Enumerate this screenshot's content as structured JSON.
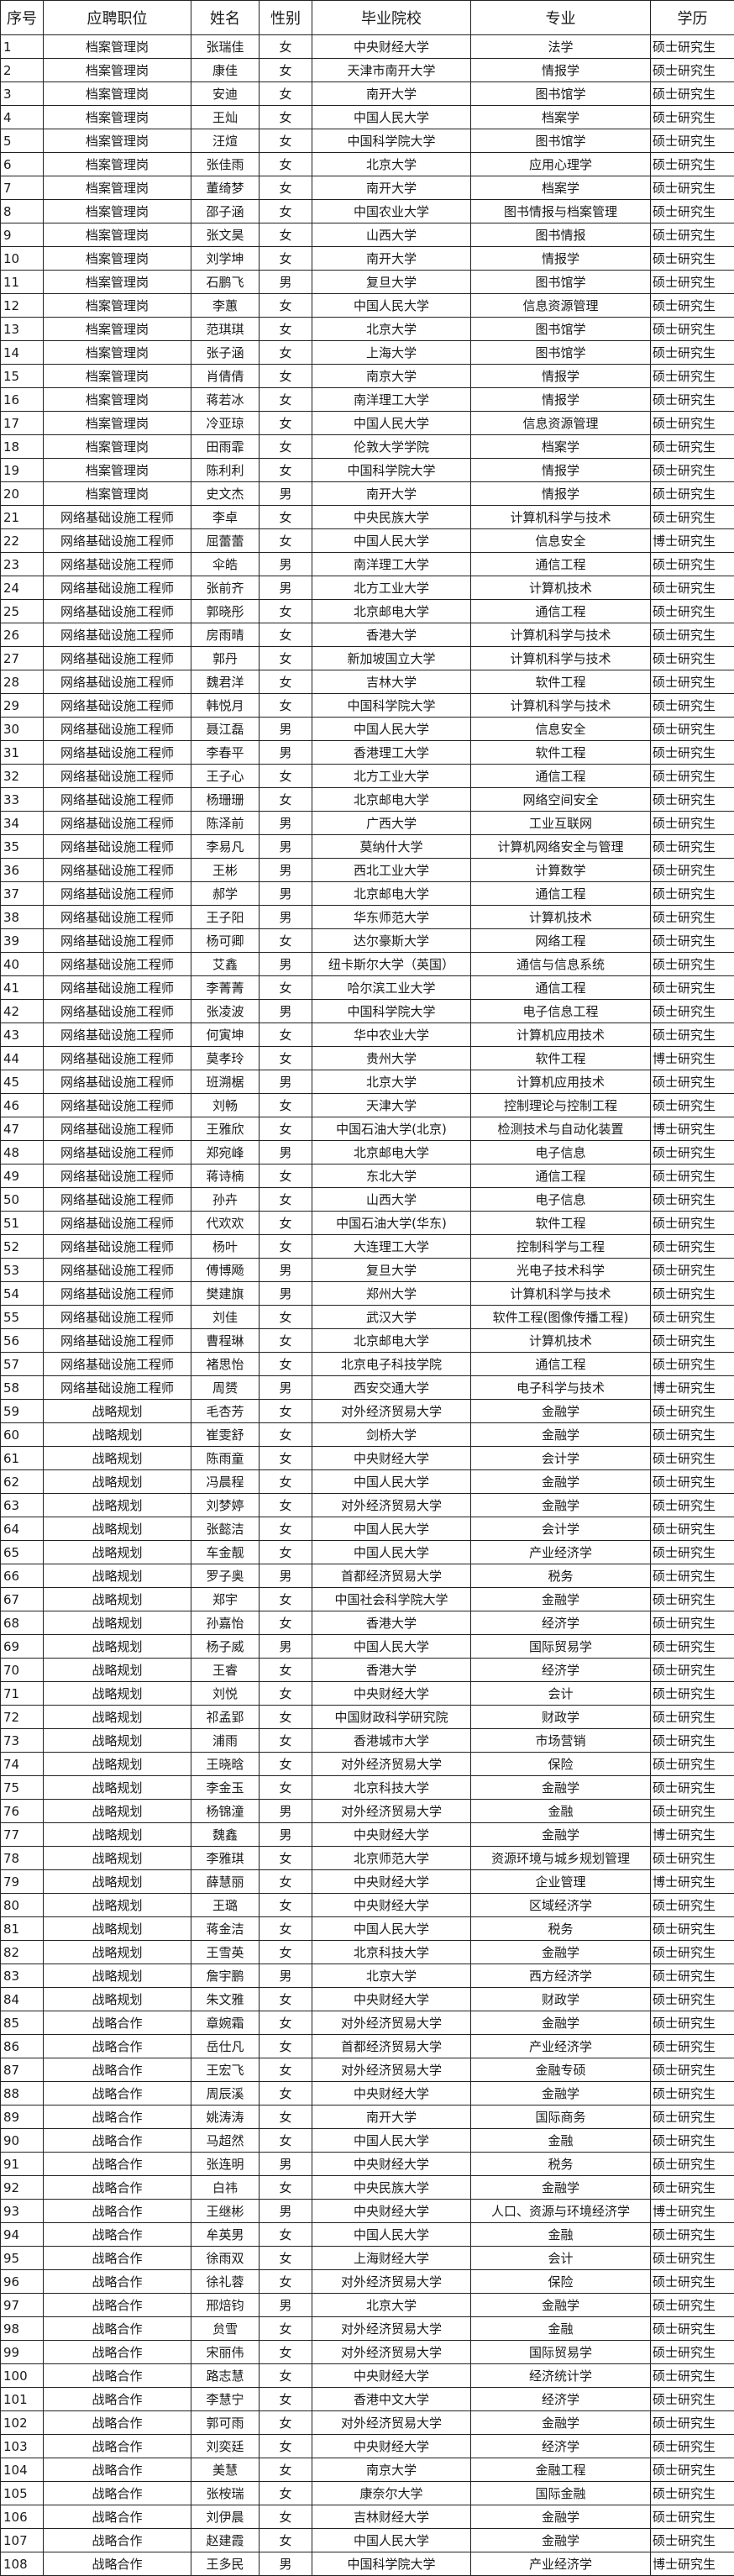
{
  "table": {
    "headers": [
      "序号",
      "应聘职位",
      "姓名",
      "性别",
      "毕业院校",
      "专业",
      "学历"
    ],
    "rows": [
      [
        "1",
        "档案管理岗",
        "张瑞佳",
        "女",
        "中央财经大学",
        "法学",
        "硕士研究生"
      ],
      [
        "2",
        "档案管理岗",
        "康佳",
        "女",
        "天津市南开大学",
        "情报学",
        "硕士研究生"
      ],
      [
        "3",
        "档案管理岗",
        "安迪",
        "女",
        "南开大学",
        "图书馆学",
        "硕士研究生"
      ],
      [
        "4",
        "档案管理岗",
        "王灿",
        "女",
        "中国人民大学",
        "档案学",
        "硕士研究生"
      ],
      [
        "5",
        "档案管理岗",
        "汪煊",
        "女",
        "中国科学院大学",
        "图书馆学",
        "硕士研究生"
      ],
      [
        "6",
        "档案管理岗",
        "张佳雨",
        "女",
        "北京大学",
        "应用心理学",
        "硕士研究生"
      ],
      [
        "7",
        "档案管理岗",
        "董绮梦",
        "女",
        "南开大学",
        "档案学",
        "硕士研究生"
      ],
      [
        "8",
        "档案管理岗",
        "邵子涵",
        "女",
        "中国农业大学",
        "图书情报与档案管理",
        "硕士研究生"
      ],
      [
        "9",
        "档案管理岗",
        "张文昊",
        "女",
        "山西大学",
        "图书情报",
        "硕士研究生"
      ],
      [
        "10",
        "档案管理岗",
        "刘学坤",
        "女",
        "南开大学",
        "情报学",
        "硕士研究生"
      ],
      [
        "11",
        "档案管理岗",
        "石鹏飞",
        "男",
        "复旦大学",
        "图书馆学",
        "硕士研究生"
      ],
      [
        "12",
        "档案管理岗",
        "李蕙",
        "女",
        "中国人民大学",
        "信息资源管理",
        "硕士研究生"
      ],
      [
        "13",
        "档案管理岗",
        "范琪琪",
        "女",
        "北京大学",
        "图书馆学",
        "硕士研究生"
      ],
      [
        "14",
        "档案管理岗",
        "张子涵",
        "女",
        "上海大学",
        "图书馆学",
        "硕士研究生"
      ],
      [
        "15",
        "档案管理岗",
        "肖倩倩",
        "女",
        "南京大学",
        "情报学",
        "硕士研究生"
      ],
      [
        "16",
        "档案管理岗",
        "蒋若冰",
        "女",
        "南洋理工大学",
        "情报学",
        "硕士研究生"
      ],
      [
        "17",
        "档案管理岗",
        "冷亚琼",
        "女",
        "中国人民大学",
        "信息资源管理",
        "硕士研究生"
      ],
      [
        "18",
        "档案管理岗",
        "田雨霏",
        "女",
        "伦敦大学学院",
        "档案学",
        "硕士研究生"
      ],
      [
        "19",
        "档案管理岗",
        "陈利利",
        "女",
        "中国科学院大学",
        "情报学",
        "硕士研究生"
      ],
      [
        "20",
        "档案管理岗",
        "史文杰",
        "男",
        "南开大学",
        "情报学",
        "硕士研究生"
      ],
      [
        "21",
        "网络基础设施工程师",
        "李卓",
        "女",
        "中央民族大学",
        "计算机科学与技术",
        "硕士研究生"
      ],
      [
        "22",
        "网络基础设施工程师",
        "屈蕾蕾",
        "女",
        "中国人民大学",
        "信息安全",
        "博士研究生"
      ],
      [
        "23",
        "网络基础设施工程师",
        "伞皓",
        "男",
        "南洋理工大学",
        "通信工程",
        "硕士研究生"
      ],
      [
        "24",
        "网络基础设施工程师",
        "张前齐",
        "男",
        "北方工业大学",
        "计算机技术",
        "硕士研究生"
      ],
      [
        "25",
        "网络基础设施工程师",
        "郭晓彤",
        "女",
        "北京邮电大学",
        "通信工程",
        "硕士研究生"
      ],
      [
        "26",
        "网络基础设施工程师",
        "房雨晴",
        "女",
        "香港大学",
        "计算机科学与技术",
        "硕士研究生"
      ],
      [
        "27",
        "网络基础设施工程师",
        "郭丹",
        "女",
        "新加坡国立大学",
        "计算机科学与技术",
        "硕士研究生"
      ],
      [
        "28",
        "网络基础设施工程师",
        "魏君洋",
        "女",
        "吉林大学",
        "软件工程",
        "硕士研究生"
      ],
      [
        "29",
        "网络基础设施工程师",
        "韩悦月",
        "女",
        "中国科学院大学",
        "计算机科学与技术",
        "硕士研究生"
      ],
      [
        "30",
        "网络基础设施工程师",
        "聂江磊",
        "男",
        "中国人民大学",
        "信息安全",
        "硕士研究生"
      ],
      [
        "31",
        "网络基础设施工程师",
        "李春平",
        "男",
        "香港理工大学",
        "软件工程",
        "硕士研究生"
      ],
      [
        "32",
        "网络基础设施工程师",
        "王子心",
        "女",
        "北方工业大学",
        "通信工程",
        "硕士研究生"
      ],
      [
        "33",
        "网络基础设施工程师",
        "杨珊珊",
        "女",
        "北京邮电大学",
        "网络空间安全",
        "硕士研究生"
      ],
      [
        "34",
        "网络基础设施工程师",
        "陈泽前",
        "男",
        "广西大学",
        "工业互联网",
        "硕士研究生"
      ],
      [
        "35",
        "网络基础设施工程师",
        "李易凡",
        "男",
        "莫纳什大学",
        "计算机网络安全与管理",
        "硕士研究生"
      ],
      [
        "36",
        "网络基础设施工程师",
        "王彬",
        "男",
        "西北工业大学",
        "计算数学",
        "硕士研究生"
      ],
      [
        "37",
        "网络基础设施工程师",
        "郝学",
        "男",
        "北京邮电大学",
        "通信工程",
        "硕士研究生"
      ],
      [
        "38",
        "网络基础设施工程师",
        "王子阳",
        "男",
        "华东师范大学",
        "计算机技术",
        "硕士研究生"
      ],
      [
        "39",
        "网络基础设施工程师",
        "杨可卿",
        "女",
        "达尔豪斯大学",
        "网络工程",
        "硕士研究生"
      ],
      [
        "40",
        "网络基础设施工程师",
        "艾鑫",
        "男",
        "纽卡斯尔大学（英国）",
        "通信与信息系统",
        "硕士研究生"
      ],
      [
        "41",
        "网络基础设施工程师",
        "李菁菁",
        "女",
        "哈尔滨工业大学",
        "通信工程",
        "硕士研究生"
      ],
      [
        "42",
        "网络基础设施工程师",
        "张凌波",
        "男",
        "中国科学院大学",
        "电子信息工程",
        "硕士研究生"
      ],
      [
        "43",
        "网络基础设施工程师",
        "何寅坤",
        "女",
        "华中农业大学",
        "计算机应用技术",
        "硕士研究生"
      ],
      [
        "44",
        "网络基础设施工程师",
        "莫孝玲",
        "女",
        "贵州大学",
        "软件工程",
        "博士研究生"
      ],
      [
        "45",
        "网络基础设施工程师",
        "班溯椐",
        "男",
        "北京大学",
        "计算机应用技术",
        "硕士研究生"
      ],
      [
        "46",
        "网络基础设施工程师",
        "刘畅",
        "女",
        "天津大学",
        "控制理论与控制工程",
        "硕士研究生"
      ],
      [
        "47",
        "网络基础设施工程师",
        "王雅欣",
        "女",
        "中国石油大学(北京)",
        "检测技术与自动化装置",
        "博士研究生"
      ],
      [
        "48",
        "网络基础设施工程师",
        "郑宛峰",
        "男",
        "北京邮电大学",
        "电子信息",
        "硕士研究生"
      ],
      [
        "49",
        "网络基础设施工程师",
        "蒋诗楠",
        "女",
        "东北大学",
        "通信工程",
        "硕士研究生"
      ],
      [
        "50",
        "网络基础设施工程师",
        "孙卉",
        "女",
        "山西大学",
        "电子信息",
        "硕士研究生"
      ],
      [
        "51",
        "网络基础设施工程师",
        "代欢欢",
        "女",
        "中国石油大学(华东)",
        "软件工程",
        "硕士研究生"
      ],
      [
        "52",
        "网络基础设施工程师",
        "杨叶",
        "女",
        "大连理工大学",
        "控制科学与工程",
        "硕士研究生"
      ],
      [
        "53",
        "网络基础设施工程师",
        "傅博飏",
        "男",
        "复旦大学",
        "光电子技术科学",
        "硕士研究生"
      ],
      [
        "54",
        "网络基础设施工程师",
        "樊建旗",
        "男",
        "郑州大学",
        "计算机科学与技术",
        "硕士研究生"
      ],
      [
        "55",
        "网络基础设施工程师",
        "刘佳",
        "女",
        "武汉大学",
        "软件工程(图像传播工程)",
        "硕士研究生"
      ],
      [
        "56",
        "网络基础设施工程师",
        "曹程琳",
        "女",
        "北京邮电大学",
        "计算机技术",
        "硕士研究生"
      ],
      [
        "57",
        "网络基础设施工程师",
        "褚思怡",
        "女",
        "北京电子科技学院",
        "通信工程",
        "硕士研究生"
      ],
      [
        "58",
        "网络基础设施工程师",
        "周赟",
        "男",
        "西安交通大学",
        "电子科学与技术",
        "博士研究生"
      ],
      [
        "59",
        "战略规划",
        "毛杏芳",
        "女",
        "对外经济贸易大学",
        "金融学",
        "硕士研究生"
      ],
      [
        "60",
        "战略规划",
        "崔雯舒",
        "女",
        "剑桥大学",
        "金融学",
        "硕士研究生"
      ],
      [
        "61",
        "战略规划",
        "陈雨童",
        "女",
        "中央财经大学",
        "会计学",
        "硕士研究生"
      ],
      [
        "62",
        "战略规划",
        "冯晨程",
        "女",
        "中国人民大学",
        "金融学",
        "硕士研究生"
      ],
      [
        "63",
        "战略规划",
        "刘梦婷",
        "女",
        "对外经济贸易大学",
        "金融学",
        "硕士研究生"
      ],
      [
        "64",
        "战略规划",
        "张懿洁",
        "女",
        "中国人民大学",
        "会计学",
        "硕士研究生"
      ],
      [
        "65",
        "战略规划",
        "车金靓",
        "女",
        "中国人民大学",
        "产业经济学",
        "硕士研究生"
      ],
      [
        "66",
        "战略规划",
        "罗子奥",
        "男",
        "首都经济贸易大学",
        "税务",
        "硕士研究生"
      ],
      [
        "67",
        "战略规划",
        "郑宇",
        "女",
        "中国社会科学院大学",
        "金融学",
        "硕士研究生"
      ],
      [
        "68",
        "战略规划",
        "孙嘉怡",
        "女",
        "香港大学",
        "经济学",
        "硕士研究生"
      ],
      [
        "69",
        "战略规划",
        "杨子威",
        "男",
        "中国人民大学",
        "国际贸易学",
        "硕士研究生"
      ],
      [
        "70",
        "战略规划",
        "王睿",
        "女",
        "香港大学",
        "经济学",
        "硕士研究生"
      ],
      [
        "71",
        "战略规划",
        "刘悦",
        "女",
        "中央财经大学",
        "会计",
        "硕士研究生"
      ],
      [
        "72",
        "战略规划",
        "祁孟郢",
        "女",
        "中国财政科学研究院",
        "财政学",
        "硕士研究生"
      ],
      [
        "73",
        "战略规划",
        "浦雨",
        "女",
        "香港城市大学",
        "市场营销",
        "硕士研究生"
      ],
      [
        "74",
        "战略规划",
        "王晓晗",
        "女",
        "对外经济贸易大学",
        "保险",
        "硕士研究生"
      ],
      [
        "75",
        "战略规划",
        "李金玉",
        "女",
        "北京科技大学",
        "金融学",
        "硕士研究生"
      ],
      [
        "76",
        "战略规划",
        "杨锦潼",
        "男",
        "对外经济贸易大学",
        "金融",
        "硕士研究生"
      ],
      [
        "77",
        "战略规划",
        "魏鑫",
        "男",
        "中央财经大学",
        "金融学",
        "博士研究生"
      ],
      [
        "78",
        "战略规划",
        "李雅琪",
        "女",
        "北京师范大学",
        "资源环境与城乡规划管理",
        "硕士研究生"
      ],
      [
        "79",
        "战略规划",
        "薛慧丽",
        "女",
        "中央财经大学",
        "企业管理",
        "博士研究生"
      ],
      [
        "80",
        "战略规划",
        "王璐",
        "女",
        "中央财经大学",
        "区域经济学",
        "硕士研究生"
      ],
      [
        "81",
        "战略规划",
        "蒋金洁",
        "女",
        "中国人民大学",
        "税务",
        "硕士研究生"
      ],
      [
        "82",
        "战略规划",
        "王雪英",
        "女",
        "北京科技大学",
        "金融学",
        "硕士研究生"
      ],
      [
        "83",
        "战略规划",
        "詹宇鹏",
        "男",
        "北京大学",
        "西方经济学",
        "硕士研究生"
      ],
      [
        "84",
        "战略规划",
        "朱文雅",
        "女",
        "中央财经大学",
        "财政学",
        "硕士研究生"
      ],
      [
        "85",
        "战略合作",
        "章婉霜",
        "女",
        "对外经济贸易大学",
        "金融学",
        "硕士研究生"
      ],
      [
        "86",
        "战略合作",
        "岳仕凡",
        "女",
        "首都经济贸易大学",
        "产业经济学",
        "硕士研究生"
      ],
      [
        "87",
        "战略合作",
        "王宏飞",
        "女",
        "对外经济贸易大学",
        "金融专硕",
        "硕士研究生"
      ],
      [
        "88",
        "战略合作",
        "周辰溪",
        "女",
        "中央财经大学",
        "金融学",
        "硕士研究生"
      ],
      [
        "89",
        "战略合作",
        "姚涛涛",
        "女",
        "南开大学",
        "国际商务",
        "硕士研究生"
      ],
      [
        "90",
        "战略合作",
        "马超然",
        "女",
        "中国人民大学",
        "金融",
        "硕士研究生"
      ],
      [
        "91",
        "战略合作",
        "张连明",
        "男",
        "中央财经大学",
        "税务",
        "硕士研究生"
      ],
      [
        "92",
        "战略合作",
        "白祎",
        "女",
        "中央民族大学",
        "金融学",
        "硕士研究生"
      ],
      [
        "93",
        "战略合作",
        "王继彬",
        "男",
        "中央财经大学",
        "人口、资源与环境经济学",
        "博士研究生"
      ],
      [
        "94",
        "战略合作",
        "牟英男",
        "女",
        "中国人民大学",
        "金融",
        "硕士研究生"
      ],
      [
        "95",
        "战略合作",
        "徐雨双",
        "女",
        "上海财经大学",
        "会计",
        "硕士研究生"
      ],
      [
        "96",
        "战略合作",
        "徐礼蓉",
        "女",
        "对外经济贸易大学",
        "保险",
        "硕士研究生"
      ],
      [
        "97",
        "战略合作",
        "邢焙钧",
        "男",
        "北京大学",
        "金融学",
        "硕士研究生"
      ],
      [
        "98",
        "战略合作",
        "贠雪",
        "女",
        "对外经济贸易大学",
        "金融",
        "硕士研究生"
      ],
      [
        "99",
        "战略合作",
        "宋丽伟",
        "女",
        "对外经济贸易大学",
        "国际贸易学",
        "硕士研究生"
      ],
      [
        "100",
        "战略合作",
        "路志慧",
        "女",
        "中央财经大学",
        "经济统计学",
        "硕士研究生"
      ],
      [
        "101",
        "战略合作",
        "李慧宁",
        "女",
        "香港中文大学",
        "经济学",
        "硕士研究生"
      ],
      [
        "102",
        "战略合作",
        "郭可雨",
        "女",
        "对外经济贸易大学",
        "金融学",
        "硕士研究生"
      ],
      [
        "103",
        "战略合作",
        "刘奕廷",
        "女",
        "中央财经大学",
        "经济学",
        "硕士研究生"
      ],
      [
        "104",
        "战略合作",
        "美慧",
        "女",
        "南京大学",
        "金融工程",
        "硕士研究生"
      ],
      [
        "105",
        "战略合作",
        "张桉瑞",
        "女",
        "康奈尔大学",
        "国际金融",
        "硕士研究生"
      ],
      [
        "106",
        "战略合作",
        "刘伊晨",
        "女",
        "吉林财经大学",
        "金融学",
        "硕士研究生"
      ],
      [
        "107",
        "战略合作",
        "赵建霞",
        "女",
        "中国人民大学",
        "金融学",
        "硕士研究生"
      ],
      [
        "108",
        "战略合作",
        "王多民",
        "男",
        "中国科学院大学",
        "产业经济学",
        "博士研究生"
      ]
    ]
  }
}
